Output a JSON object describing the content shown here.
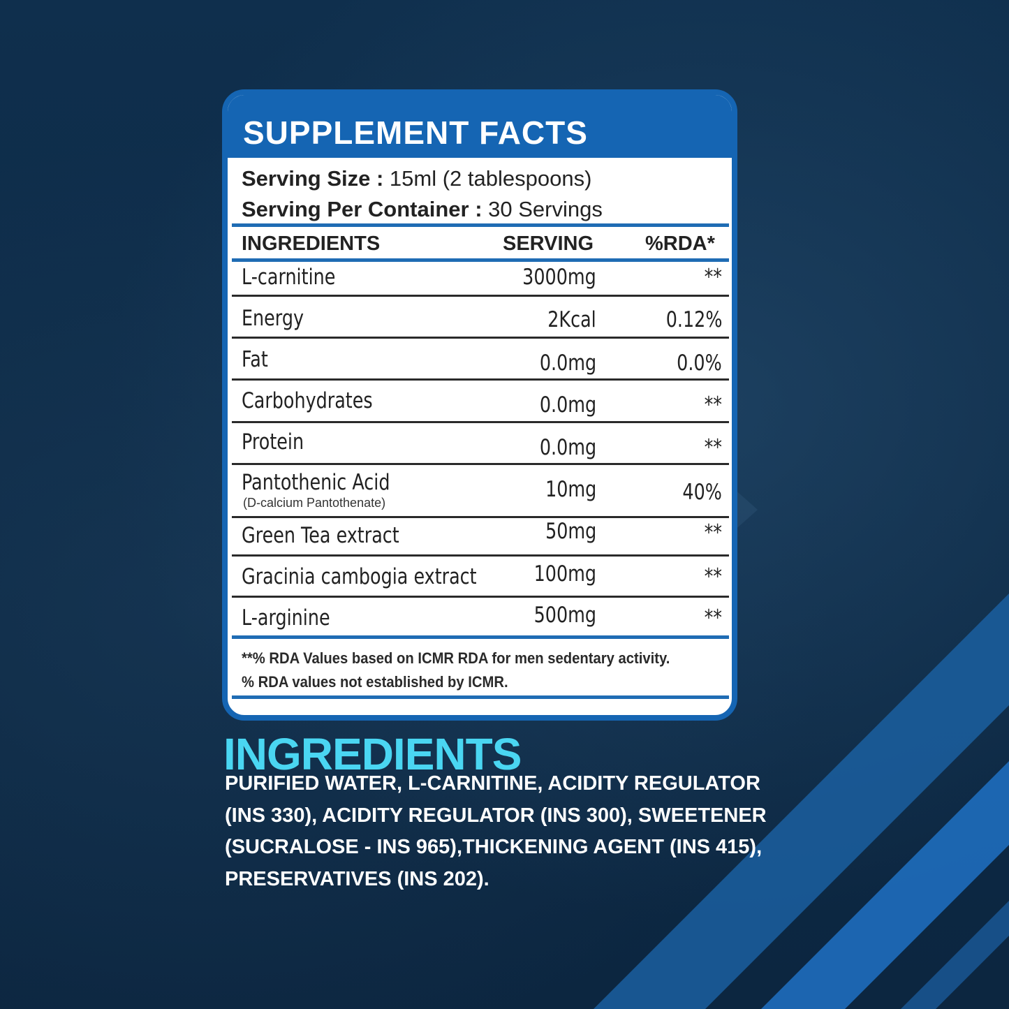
{
  "colors": {
    "card_blue": "#1565b3",
    "accent_cyan": "#4ad6f2",
    "background": "#0d2a45"
  },
  "facts": {
    "title": "SUPPLEMENT FACTS",
    "serving_size_label": "Serving Size :",
    "serving_size_value": " 15ml (2 tablespoons)",
    "servings_per_container_label": "Serving Per Container :",
    "servings_per_container_value": " 30 Servings",
    "columns": {
      "ingredient": "INGREDIENTS",
      "serving": "SERVING",
      "rda": "%RDA*"
    },
    "rows": [
      {
        "name": "L-carnitine",
        "serving": "3000mg",
        "rda": "**"
      },
      {
        "name": "Energy",
        "serving": "2Kcal",
        "rda": "0.12%"
      },
      {
        "name": "Fat",
        "serving": "0.0mg",
        "rda": "0.0%"
      },
      {
        "name": "Carbohydrates",
        "serving": "0.0mg",
        "rda": "**"
      },
      {
        "name": "Protein",
        "serving": "0.0mg",
        "rda": "**"
      },
      {
        "name": "Pantothenic Acid",
        "sub": "(D-calcium Pantothenate)",
        "serving": "10mg",
        "rda": "40%"
      },
      {
        "name": "Green Tea extract",
        "serving": "50mg",
        "rda": "**"
      },
      {
        "name": "Gracinia cambogia extract",
        "serving": "100mg",
        "rda": "**"
      },
      {
        "name": "L-arginine",
        "serving": "500mg",
        "rda": "**"
      }
    ],
    "footnote_1": "**% RDA Values based on ICMR RDA for men sedentary activity.",
    "footnote_2": "% RDA values not established by ICMR."
  },
  "ingredients": {
    "heading": "INGREDIENTS",
    "text": "PURIFIED WATER, L-CARNITINE, ACIDITY REGULATOR (INS 330), ACIDITY REGULATOR (INS 300), SWEETENER (SUCRALOSE - INS 965),THICKENING AGENT (INS 415), PRESERVATIVES (INS 202)."
  }
}
